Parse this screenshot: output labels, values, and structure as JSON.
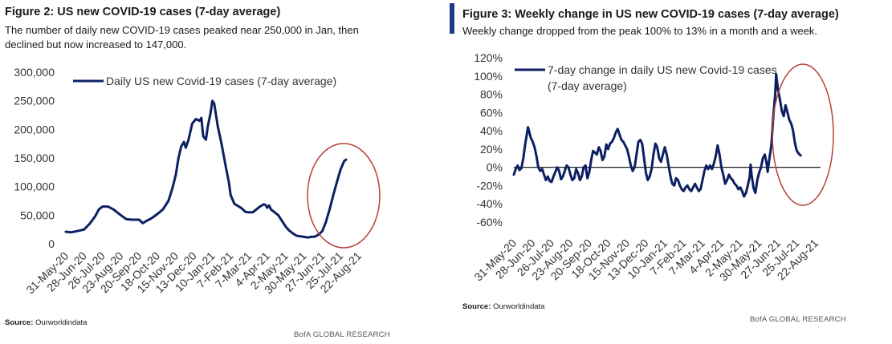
{
  "colors": {
    "line": "#0d1f63",
    "circle": "#b3413a",
    "accent": "#1d3a8a",
    "zero_line": "#000000"
  },
  "figures": [
    {
      "title": "Figure 2: US new COVID-19 cases (7-day average)",
      "subtitle_lines": [
        "The number of daily new COVID-19 cases peaked near 250,000 in Jan, then",
        "declined but now increased to 147,000."
      ],
      "source_label": "Source:",
      "source_value": "Ourworldindata",
      "brand": "BofA GLOBAL RESEARCH"
    },
    {
      "title": "Figure 3: Weekly change in US new COVID-19 cases (7-day  average)",
      "subtitle_lines": [
        "Weekly change dropped from the peak 100% to 13% in a month and a week."
      ],
      "source_label": "Source:",
      "source_value": "Ourworldindata",
      "brand": "BofA GLOBAL RESEARCH"
    }
  ],
  "chart_data": [
    {
      "type": "line",
      "series": [
        {
          "name": "Daily US new Covid-19 cases (7-day average)"
        }
      ],
      "legend_lines": [
        "Daily US new Covid-19 cases (7-day average)"
      ],
      "y_ticks": [
        "300,000",
        "250,000",
        "200,000",
        "150,000",
        "100,000",
        "50,000",
        "0"
      ],
      "ylim": [
        0,
        300000
      ],
      "x_ticks": [
        "31-May-20",
        "28-Jun-20",
        "26-Jul-20",
        "23-Aug-20",
        "20-Sep-20",
        "18-Oct-20",
        "15-Nov-20",
        "13-Dec-20",
        "10-Jan-21",
        "7-Feb-21",
        "7-Mar-21",
        "4-Apr-21",
        "2-May-21",
        "30-May-21",
        "27-Jun-21",
        "25-Jul-21",
        "22-Aug-21"
      ],
      "points": [
        [
          0,
          21000
        ],
        [
          0.3,
          20000
        ],
        [
          0.6,
          22000
        ],
        [
          1,
          25000
        ],
        [
          1.3,
          35000
        ],
        [
          1.6,
          48000
        ],
        [
          1.8,
          60000
        ],
        [
          2,
          65000
        ],
        [
          2.3,
          65000
        ],
        [
          2.6,
          60000
        ],
        [
          3,
          50000
        ],
        [
          3.3,
          43000
        ],
        [
          3.6,
          42000
        ],
        [
          4,
          42000
        ],
        [
          4.2,
          36000
        ],
        [
          4.4,
          40000
        ],
        [
          4.7,
          45000
        ],
        [
          5,
          52000
        ],
        [
          5.3,
          60000
        ],
        [
          5.6,
          75000
        ],
        [
          5.8,
          95000
        ],
        [
          6,
          120000
        ],
        [
          6.15,
          150000
        ],
        [
          6.3,
          170000
        ],
        [
          6.45,
          178000
        ],
        [
          6.55,
          168000
        ],
        [
          6.7,
          182000
        ],
        [
          6.9,
          210000
        ],
        [
          7.1,
          218000
        ],
        [
          7.3,
          215000
        ],
        [
          7.4,
          220000
        ],
        [
          7.5,
          188000
        ],
        [
          7.65,
          182000
        ],
        [
          7.75,
          205000
        ],
        [
          7.9,
          228000
        ],
        [
          8,
          250000
        ],
        [
          8.1,
          245000
        ],
        [
          8.3,
          205000
        ],
        [
          8.5,
          175000
        ],
        [
          8.7,
          140000
        ],
        [
          8.9,
          108000
        ],
        [
          9,
          85000
        ],
        [
          9.2,
          70000
        ],
        [
          9.4,
          66000
        ],
        [
          9.6,
          62000
        ],
        [
          9.8,
          56000
        ],
        [
          10,
          55000
        ],
        [
          10.2,
          55000
        ],
        [
          10.4,
          60000
        ],
        [
          10.6,
          65000
        ],
        [
          10.8,
          69000
        ],
        [
          10.9,
          68000
        ],
        [
          11,
          63000
        ],
        [
          11.1,
          67000
        ],
        [
          11.2,
          60000
        ],
        [
          11.4,
          55000
        ],
        [
          11.6,
          50000
        ],
        [
          11.8,
          40000
        ],
        [
          12,
          30000
        ],
        [
          12.2,
          23000
        ],
        [
          12.4,
          18000
        ],
        [
          12.6,
          14000
        ],
        [
          12.8,
          13000
        ],
        [
          13,
          12000
        ],
        [
          13.2,
          11000
        ],
        [
          13.4,
          12000
        ],
        [
          13.6,
          12500
        ],
        [
          13.8,
          16000
        ],
        [
          14,
          22000
        ],
        [
          14.2,
          38000
        ],
        [
          14.4,
          60000
        ],
        [
          14.6,
          85000
        ],
        [
          14.8,
          108000
        ],
        [
          15,
          130000
        ],
        [
          15.2,
          145000
        ],
        [
          15.3,
          147000
        ]
      ]
    },
    {
      "type": "line",
      "series": [
        {
          "name": "7-day change in daily US new Covid-19 cases (7-day average)"
        }
      ],
      "legend_lines": [
        "7-day change in daily US new Covid-19 cases",
        "(7-day average)"
      ],
      "y_ticks": [
        "120%",
        "100%",
        "80%",
        "60%",
        "40%",
        "20%",
        "0%",
        "-20%",
        "-40%",
        "-60%"
      ],
      "ylim": [
        -60,
        120
      ],
      "x_ticks": [
        "31-May-20",
        "28-Jun-20",
        "26-Jul-20",
        "23-Aug-20",
        "20-Sep-20",
        "18-Oct-20",
        "15-Nov-20",
        "13-Dec-20",
        "10-Jan-21",
        "7-Feb-21",
        "7-Mar-21",
        "4-Apr-21",
        "2-May-21",
        "30-May-21",
        "27-Jun-21",
        "25-Jul-21",
        "22-Aug-21"
      ],
      "points": [
        [
          0,
          -8
        ],
        [
          0.1,
          -2
        ],
        [
          0.2,
          2
        ],
        [
          0.3,
          -3
        ],
        [
          0.4,
          -1
        ],
        [
          0.5,
          10
        ],
        [
          0.6,
          25
        ],
        [
          0.7,
          38
        ],
        [
          0.75,
          44
        ],
        [
          0.8,
          40
        ],
        [
          0.9,
          32
        ],
        [
          1,
          28
        ],
        [
          1.1,
          22
        ],
        [
          1.2,
          12
        ],
        [
          1.3,
          0
        ],
        [
          1.4,
          -4
        ],
        [
          1.5,
          -2
        ],
        [
          1.6,
          -8
        ],
        [
          1.7,
          -14
        ],
        [
          1.8,
          -10
        ],
        [
          1.9,
          -15
        ],
        [
          2,
          -16
        ],
        [
          2.1,
          -10
        ],
        [
          2.2,
          -5
        ],
        [
          2.3,
          0
        ],
        [
          2.4,
          -4
        ],
        [
          2.5,
          -13
        ],
        [
          2.6,
          -10
        ],
        [
          2.7,
          -4
        ],
        [
          2.8,
          2
        ],
        [
          2.9,
          0
        ],
        [
          3,
          -8
        ],
        [
          3.1,
          -14
        ],
        [
          3.2,
          -12
        ],
        [
          3.3,
          -2
        ],
        [
          3.4,
          -6
        ],
        [
          3.5,
          -14
        ],
        [
          3.6,
          -10
        ],
        [
          3.7,
          0
        ],
        [
          3.8,
          2
        ],
        [
          3.9,
          -12
        ],
        [
          4,
          -5
        ],
        [
          4.1,
          8
        ],
        [
          4.2,
          18
        ],
        [
          4.3,
          16
        ],
        [
          4.4,
          14
        ],
        [
          4.5,
          22
        ],
        [
          4.6,
          18
        ],
        [
          4.7,
          8
        ],
        [
          4.8,
          12
        ],
        [
          4.9,
          25
        ],
        [
          5,
          20
        ],
        [
          5.1,
          26
        ],
        [
          5.2,
          28
        ],
        [
          5.3,
          32
        ],
        [
          5.4,
          38
        ],
        [
          5.5,
          42
        ],
        [
          5.6,
          36
        ],
        [
          5.7,
          30
        ],
        [
          5.8,
          28
        ],
        [
          5.9,
          24
        ],
        [
          6,
          20
        ],
        [
          6.1,
          12
        ],
        [
          6.2,
          2
        ],
        [
          6.3,
          -4
        ],
        [
          6.4,
          0
        ],
        [
          6.5,
          14
        ],
        [
          6.6,
          28
        ],
        [
          6.7,
          30
        ],
        [
          6.8,
          26
        ],
        [
          6.9,
          10
        ],
        [
          7,
          -6
        ],
        [
          7.1,
          -14
        ],
        [
          7.2,
          -10
        ],
        [
          7.3,
          -2
        ],
        [
          7.4,
          14
        ],
        [
          7.5,
          26
        ],
        [
          7.6,
          22
        ],
        [
          7.7,
          10
        ],
        [
          7.8,
          6
        ],
        [
          7.9,
          14
        ],
        [
          8,
          22
        ],
        [
          8.1,
          14
        ],
        [
          8.2,
          2
        ],
        [
          8.3,
          -10
        ],
        [
          8.4,
          -18
        ],
        [
          8.5,
          -20
        ],
        [
          8.6,
          -12
        ],
        [
          8.7,
          -14
        ],
        [
          8.8,
          -20
        ],
        [
          8.9,
          -24
        ],
        [
          9,
          -26
        ],
        [
          9.1,
          -22
        ],
        [
          9.2,
          -20
        ],
        [
          9.3,
          -24
        ],
        [
          9.4,
          -26
        ],
        [
          9.5,
          -22
        ],
        [
          9.6,
          -18
        ],
        [
          9.7,
          -22
        ],
        [
          9.8,
          -26
        ],
        [
          9.9,
          -24
        ],
        [
          10,
          -14
        ],
        [
          10.1,
          -4
        ],
        [
          10.2,
          2
        ],
        [
          10.3,
          -2
        ],
        [
          10.4,
          2
        ],
        [
          10.5,
          -2
        ],
        [
          10.6,
          4
        ],
        [
          10.7,
          12
        ],
        [
          10.8,
          24
        ],
        [
          10.9,
          14
        ],
        [
          11,
          0
        ],
        [
          11.1,
          -8
        ],
        [
          11.2,
          -18
        ],
        [
          11.3,
          -14
        ],
        [
          11.4,
          -8
        ],
        [
          11.5,
          -12
        ],
        [
          11.6,
          -14
        ],
        [
          11.7,
          -18
        ],
        [
          11.8,
          -20
        ],
        [
          11.9,
          -24
        ],
        [
          12,
          -22
        ],
        [
          12.1,
          -26
        ],
        [
          12.2,
          -32
        ],
        [
          12.3,
          -28
        ],
        [
          12.4,
          -20
        ],
        [
          12.5,
          -10
        ],
        [
          12.55,
          3
        ],
        [
          12.6,
          -8
        ],
        [
          12.7,
          -22
        ],
        [
          12.8,
          -28
        ],
        [
          12.9,
          -14
        ],
        [
          13,
          -6
        ],
        [
          13.1,
          0
        ],
        [
          13.2,
          10
        ],
        [
          13.3,
          14
        ],
        [
          13.4,
          4
        ],
        [
          13.45,
          -5
        ],
        [
          13.55,
          10
        ],
        [
          13.65,
          25
        ],
        [
          13.75,
          55
        ],
        [
          13.85,
          80
        ],
        [
          13.9,
          102
        ],
        [
          14,
          85
        ],
        [
          14.1,
          75
        ],
        [
          14.2,
          62
        ],
        [
          14.3,
          56
        ],
        [
          14.4,
          68
        ],
        [
          14.5,
          60
        ],
        [
          14.6,
          52
        ],
        [
          14.7,
          48
        ],
        [
          14.8,
          40
        ],
        [
          14.9,
          26
        ],
        [
          15,
          18
        ],
        [
          15.1,
          15
        ],
        [
          15.2,
          13
        ]
      ]
    }
  ]
}
